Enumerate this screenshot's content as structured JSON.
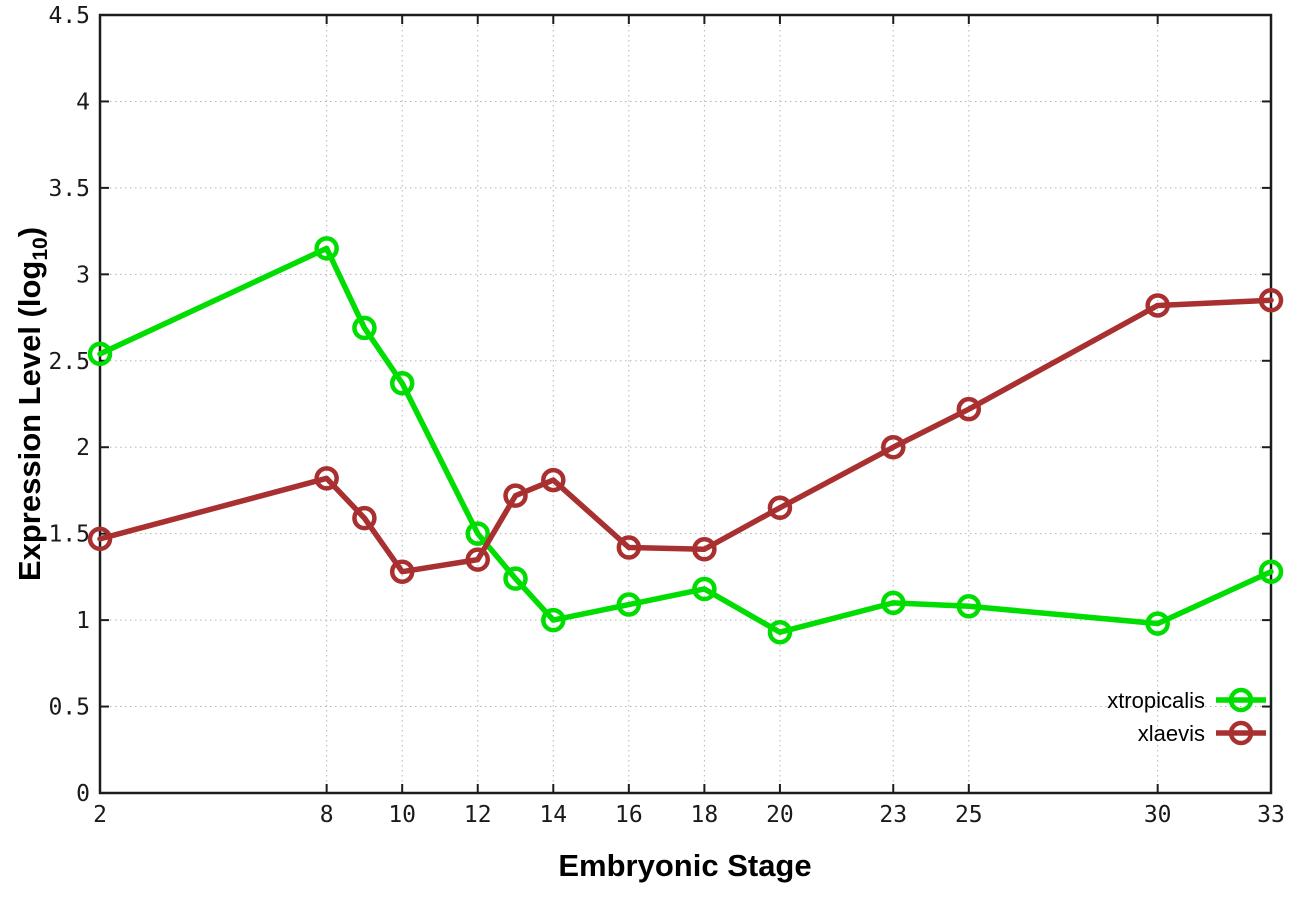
{
  "background_color": "#ffffff",
  "chart_data": {
    "type": "line",
    "title": "",
    "xlabel": "Embryonic Stage",
    "ylabel": "Expression Level (log10)",
    "ylabel_parts": {
      "prefix": "Expression Level (log",
      "sub": "10",
      "suffix": ")"
    },
    "x": [
      2,
      8,
      9,
      10,
      12,
      13,
      14,
      16,
      18,
      20,
      23,
      25,
      30,
      33
    ],
    "series": [
      {
        "name": "xtropicalis",
        "color": "#00dd00",
        "marker": "open-circle",
        "values": [
          2.54,
          3.15,
          2.69,
          2.37,
          1.5,
          1.24,
          1.0,
          1.09,
          1.18,
          0.93,
          1.1,
          1.08,
          0.98,
          1.28
        ]
      },
      {
        "name": "xlaevis",
        "color": "#a93030",
        "marker": "open-circle",
        "values": [
          1.47,
          1.82,
          1.59,
          1.28,
          1.35,
          1.72,
          1.81,
          1.42,
          1.41,
          1.65,
          2.0,
          2.22,
          2.82,
          2.85
        ]
      }
    ],
    "xlim": [
      2,
      33
    ],
    "ylim": [
      0,
      4.5
    ],
    "x_ticks": [
      2,
      8,
      10,
      12,
      14,
      16,
      18,
      20,
      23,
      25,
      30,
      33
    ],
    "x_tick_labels": [
      "2",
      "8",
      "10",
      "12",
      "14",
      "16",
      "18",
      "20",
      "23",
      "25",
      "30",
      "33"
    ],
    "y_ticks": [
      0,
      0.5,
      1,
      1.5,
      2,
      2.5,
      3,
      3.5,
      4,
      4.5
    ],
    "y_tick_labels": [
      "0",
      "0.5",
      "1",
      "1.5",
      "2",
      "2.5",
      "3",
      "3.5",
      "4",
      "4.5"
    ],
    "grid": true,
    "grid_style": "dotted",
    "grid_color": "#b5b5b5",
    "border_color": "#1c1c1c",
    "legend_position": "bottom-right-inside"
  }
}
